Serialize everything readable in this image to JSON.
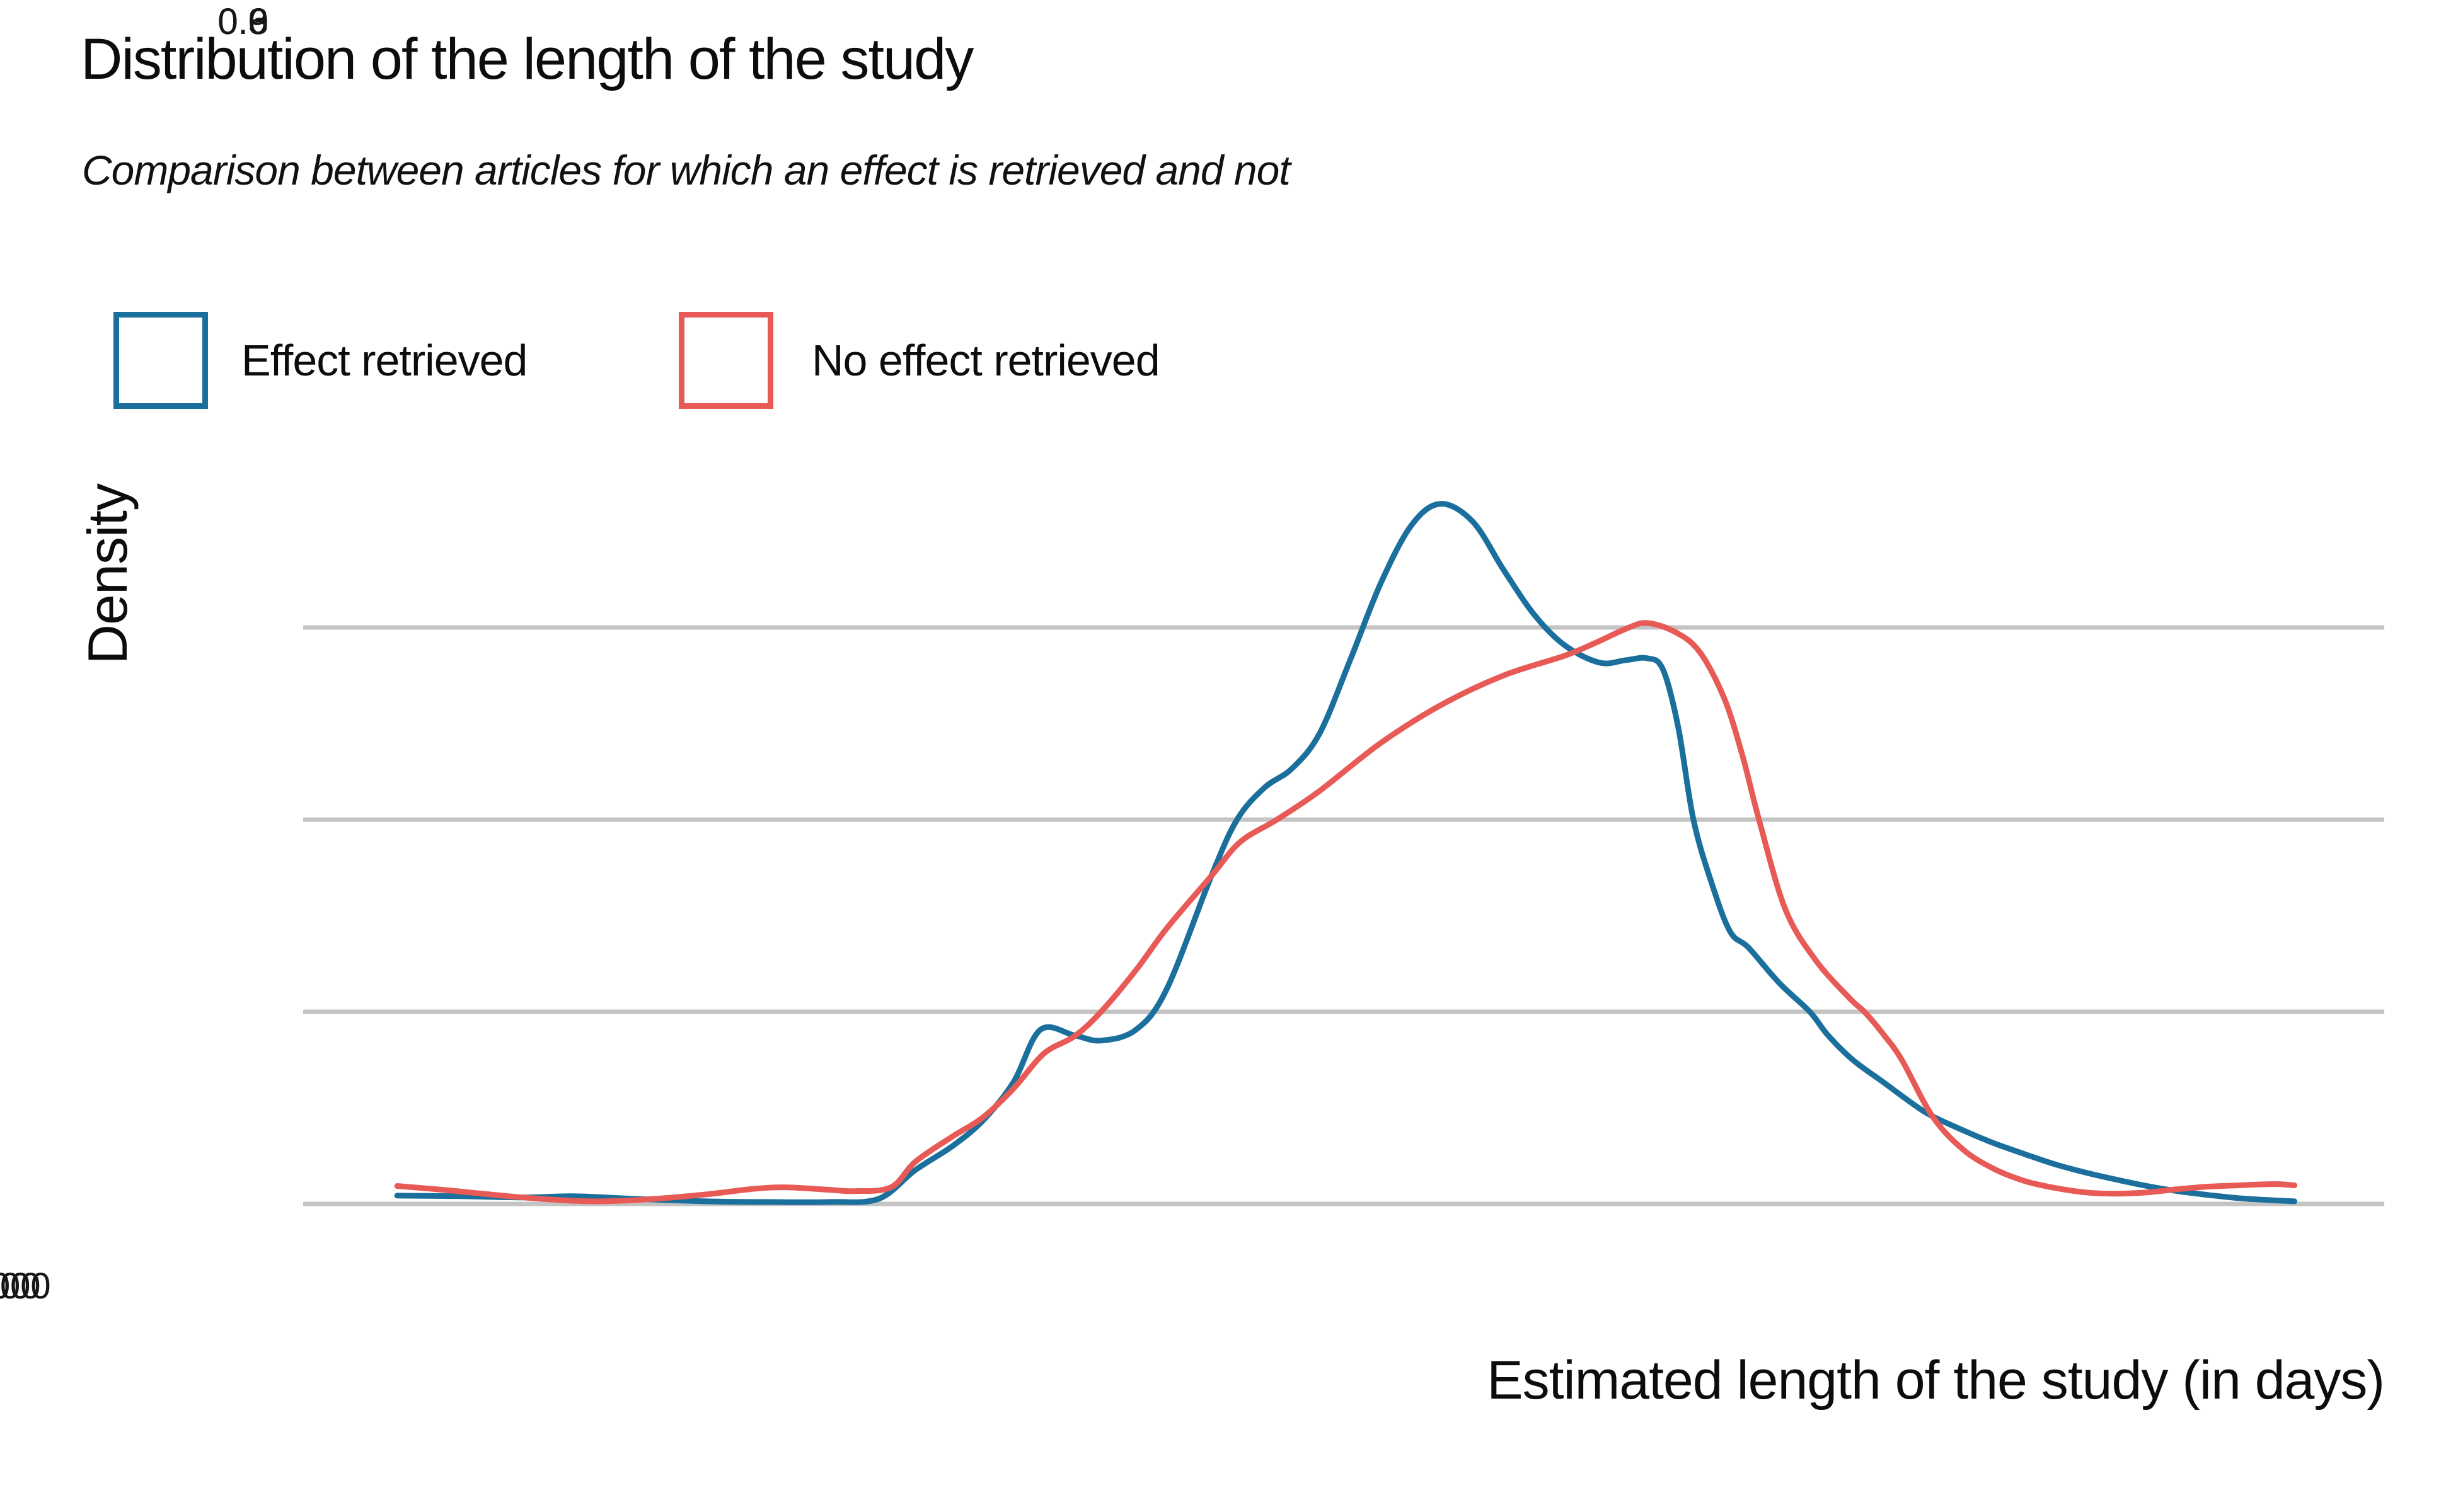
{
  "title": "Distribution of the length of the study",
  "subtitle": "Comparison between articles for which an effect is retrieved and not",
  "legend": {
    "items": [
      {
        "label": "Effect retrieved",
        "color": "#1A6F9C"
      },
      {
        "label": "No effect retrieved",
        "color": "#E85A55"
      }
    ]
  },
  "axes": {
    "x": {
      "label": "Estimated length of the study (in days)",
      "ticks": [
        "100",
        "1000",
        "10000"
      ]
    },
    "y": {
      "label": "Density",
      "ticks": [
        "0.9",
        "0.6",
        "0.3",
        "0.0"
      ]
    }
  },
  "colors": {
    "grid": "#C4C4C4",
    "blue": "#1A6F9C",
    "red": "#E85A55",
    "text": "#171717"
  },
  "chart_data": {
    "type": "line",
    "title": "Distribution of the length of the study",
    "subtitle": "Comparison between articles for which an effect is retrieved and not",
    "xlabel": "Estimated length of the study (in days)",
    "ylabel": "Density",
    "x_scale": "log10",
    "x_units": "days (points stored as [log10(days), density])",
    "x_ticks": [
      100,
      1000,
      10000
    ],
    "y_ticks": [
      0.0,
      0.3,
      0.6,
      0.9
    ],
    "x_range_log10": [
      1.34,
      4.74
    ],
    "y_range": [
      0,
      1.15
    ],
    "grid": "horizontal-only",
    "legend_position": "top-left",
    "series": [
      {
        "name": "Effect retrieved",
        "color": "#1A6F9C",
        "peak": {
          "x_days": 1570,
          "density": 1.09
        },
        "points": [
          [
            1.494,
            0.013
          ],
          [
            1.6,
            0.012
          ],
          [
            1.7,
            0.01
          ],
          [
            1.78,
            0.012
          ],
          [
            1.88,
            0.008
          ],
          [
            2.0,
            0.004
          ],
          [
            2.1,
            0.003
          ],
          [
            2.2,
            0.003
          ],
          [
            2.28,
            0.008
          ],
          [
            2.34,
            0.053
          ],
          [
            2.4,
            0.09
          ],
          [
            2.45,
            0.13
          ],
          [
            2.5,
            0.19
          ],
          [
            2.544,
            0.272
          ],
          [
            2.6,
            0.263
          ],
          [
            2.643,
            0.255
          ],
          [
            2.7,
            0.272
          ],
          [
            2.75,
            0.335
          ],
          [
            2.823,
            0.512
          ],
          [
            2.865,
            0.6
          ],
          [
            2.91,
            0.65
          ],
          [
            2.955,
            0.68
          ],
          [
            3.0,
            0.735
          ],
          [
            3.05,
            0.85
          ],
          [
            3.1,
            0.97
          ],
          [
            3.15,
            1.06
          ],
          [
            3.197,
            1.093
          ],
          [
            3.25,
            1.065
          ],
          [
            3.3,
            0.99
          ],
          [
            3.35,
            0.92
          ],
          [
            3.4,
            0.872
          ],
          [
            3.457,
            0.845
          ],
          [
            3.5,
            0.849
          ],
          [
            3.534,
            0.852
          ],
          [
            3.56,
            0.835
          ],
          [
            3.585,
            0.745
          ],
          [
            3.61,
            0.6
          ],
          [
            3.64,
            0.5
          ],
          [
            3.67,
            0.425
          ],
          [
            3.7,
            0.4
          ],
          [
            3.75,
            0.345
          ],
          [
            3.8,
            0.3
          ],
          [
            3.829,
            0.264
          ],
          [
            3.87,
            0.225
          ],
          [
            3.92,
            0.19
          ],
          [
            3.97,
            0.155
          ],
          [
            4.0,
            0.137
          ],
          [
            4.05,
            0.115
          ],
          [
            4.1,
            0.095
          ],
          [
            4.15,
            0.078
          ],
          [
            4.2,
            0.062
          ],
          [
            4.25,
            0.049
          ],
          [
            4.3,
            0.038
          ],
          [
            4.35,
            0.028
          ],
          [
            4.4,
            0.02
          ],
          [
            4.45,
            0.014
          ],
          [
            4.5,
            0.009
          ],
          [
            4.55,
            0.006
          ],
          [
            4.591,
            0.004
          ]
        ]
      },
      {
        "name": "No effect retrieved",
        "color": "#E85A55",
        "peak": {
          "x_days": 3400,
          "density": 0.91
        },
        "points": [
          [
            1.494,
            0.028
          ],
          [
            1.58,
            0.021
          ],
          [
            1.676,
            0.012
          ],
          [
            1.76,
            0.006
          ],
          [
            1.82,
            0.004
          ],
          [
            1.9,
            0.007
          ],
          [
            2.0,
            0.015
          ],
          [
            2.07,
            0.023
          ],
          [
            2.126,
            0.026
          ],
          [
            2.2,
            0.022
          ],
          [
            2.24,
            0.02
          ],
          [
            2.3,
            0.026
          ],
          [
            2.34,
            0.066
          ],
          [
            2.4,
            0.105
          ],
          [
            2.45,
            0.135
          ],
          [
            2.5,
            0.18
          ],
          [
            2.55,
            0.235
          ],
          [
            2.6,
            0.262
          ],
          [
            2.643,
            0.3
          ],
          [
            2.7,
            0.365
          ],
          [
            2.75,
            0.43
          ],
          [
            2.823,
            0.512
          ],
          [
            2.87,
            0.565
          ],
          [
            2.93,
            0.6
          ],
          [
            3.0,
            0.645
          ],
          [
            3.1,
            0.72
          ],
          [
            3.2,
            0.78
          ],
          [
            3.3,
            0.825
          ],
          [
            3.4,
            0.856
          ],
          [
            3.45,
            0.876
          ],
          [
            3.5,
            0.898
          ],
          [
            3.534,
            0.907
          ],
          [
            3.58,
            0.893
          ],
          [
            3.62,
            0.862
          ],
          [
            3.66,
            0.79
          ],
          [
            3.69,
            0.7
          ],
          [
            3.717,
            0.6
          ],
          [
            3.76,
            0.46
          ],
          [
            3.81,
            0.38
          ],
          [
            3.866,
            0.32
          ],
          [
            3.889,
            0.3
          ],
          [
            3.92,
            0.265
          ],
          [
            3.95,
            0.225
          ],
          [
            4.0,
            0.137
          ],
          [
            4.05,
            0.085
          ],
          [
            4.1,
            0.055
          ],
          [
            4.15,
            0.036
          ],
          [
            4.2,
            0.025
          ],
          [
            4.25,
            0.018
          ],
          [
            4.295,
            0.016
          ],
          [
            4.35,
            0.018
          ],
          [
            4.4,
            0.023
          ],
          [
            4.45,
            0.027
          ],
          [
            4.5,
            0.029
          ],
          [
            4.559,
            0.031
          ],
          [
            4.591,
            0.029
          ]
        ]
      }
    ]
  }
}
